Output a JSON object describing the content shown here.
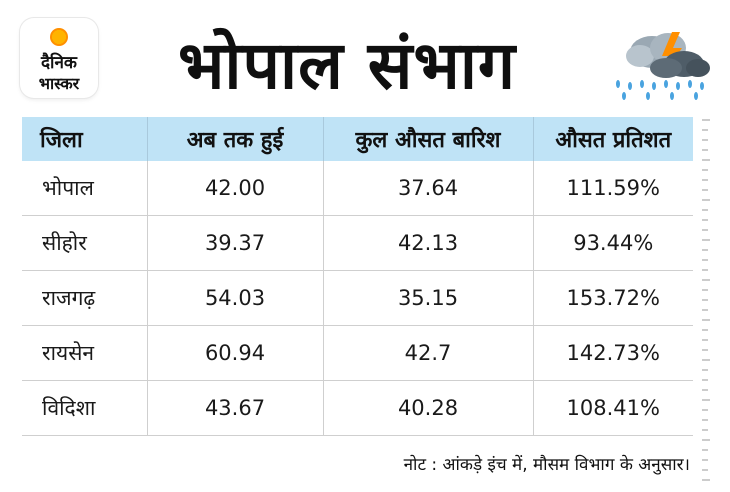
{
  "logo": {
    "line1": "दैनिक",
    "line2": "भास्कर"
  },
  "title": "भोपाल संभाग",
  "table": {
    "headers": [
      "जिला",
      "अब तक हुई",
      "कुल औसत बारिश",
      "औसत प्रतिशत"
    ],
    "rows": [
      [
        "भोपाल",
        "42.00",
        "37.64",
        "111.59%"
      ],
      [
        "सीहोर",
        "39.37",
        "42.13",
        "93.44%"
      ],
      [
        "राजगढ़",
        "54.03",
        "35.15",
        "153.72%"
      ],
      [
        "रायसेन",
        "60.94",
        "42.7",
        "142.73%"
      ],
      [
        "विदिशा",
        "43.67",
        "40.28",
        "108.41%"
      ]
    ]
  },
  "note": "नोट : आंकड़े इंच में, मौसम विभाग के अनुसार।",
  "colors": {
    "header_bg": "#bfe3f6",
    "logo_sun": "#ffb300",
    "rain_drop": "#4aa3df",
    "lightning": "#ff8f00"
  },
  "icons": [
    "weather-storm-icon"
  ]
}
